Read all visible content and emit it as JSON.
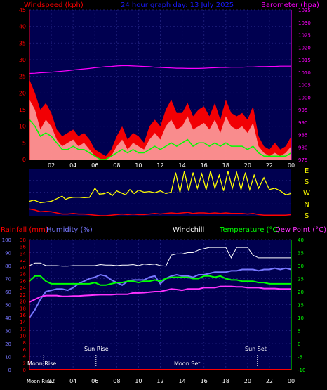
{
  "colors": {
    "background": "#000000",
    "plot_bg": "#000050",
    "wind_axis": "#ff0000",
    "baro_axis": "#ff00ff",
    "title": "#1a1aff",
    "windspeed_fill": "#ff0000",
    "gust": "#ff3030",
    "avg_wind": "#00ff00",
    "direction_line": "#ffff00",
    "rain": "#ff0000",
    "humidity": "#7777ff",
    "windchill": "#ffffff",
    "temperature": "#00ff00",
    "dewpoint": "#ff33ff",
    "temp_axis": "#00ff00"
  },
  "header": {
    "windspeed_label": "Windspeed (kph)",
    "title": "24 hour graph day: 13 July 2025",
    "barometer_label": "Barometer (hpa)"
  },
  "direction_labels": [
    "E",
    "S",
    "W",
    "N",
    "S"
  ],
  "lower_header": {
    "rain_label": "Rainfall (mm)",
    "humidity_label": "Humidity (%)",
    "windchill_label": "Windchill",
    "temperature_label": "Temperature (°C)",
    "dewpoint_label": "Dew Point (°C)"
  },
  "annotations": {
    "moon_rise": "Moon Rise",
    "sun_rise": "Sun Rise",
    "moon_set": "Moon Set",
    "sun_set": "Sun Set",
    "moon_rise_axis": "Moon Rise"
  },
  "chart_data": [
    {
      "type": "area",
      "title": "24 hour graph day: 13 July 2025",
      "xlabel": "",
      "ylabel": "Windspeed (kph)",
      "y2label": "Barometer (hpa)",
      "x_ticks": [
        "02",
        "04",
        "06",
        "08",
        "10",
        "12",
        "14",
        "16",
        "18",
        "20",
        "22",
        "00"
      ],
      "ylim": [
        0,
        45
      ],
      "yticks": [
        0,
        5,
        10,
        15,
        20,
        25,
        30,
        35,
        40,
        45
      ],
      "y2lim": [
        975,
        1035
      ],
      "y2ticks": [
        975,
        980,
        985,
        990,
        995,
        1000,
        1005,
        1010,
        1015,
        1020,
        1025,
        1030,
        1035
      ],
      "x_hours": [
        0,
        0.5,
        1,
        1.5,
        2,
        2.5,
        3,
        3.5,
        4,
        4.5,
        5,
        5.5,
        6,
        6.5,
        7,
        7.5,
        8,
        8.5,
        9,
        9.5,
        10,
        10.5,
        11,
        11.5,
        12,
        12.5,
        13,
        13.5,
        14,
        14.5,
        15,
        15.5,
        16,
        16.5,
        17,
        17.5,
        18,
        18.5,
        19,
        19.5,
        20,
        20.5,
        21,
        21.5,
        22,
        22.5,
        23,
        23.5,
        24
      ],
      "series": [
        {
          "values": [
            18,
            15,
            9,
            12,
            10,
            6,
            4,
            5,
            6,
            4,
            5,
            3,
            1,
            0,
            0,
            1,
            4,
            6,
            3,
            5,
            4,
            3,
            6,
            8,
            6,
            10,
            12,
            9,
            10,
            13,
            9,
            10,
            11,
            9,
            12,
            8,
            13,
            10,
            9,
            10,
            8,
            11,
            4,
            2,
            1,
            2,
            1,
            2,
            4
          ]
        },
        {
          "values": [
            24,
            20,
            15,
            17,
            14,
            9,
            7,
            8,
            9,
            7,
            8,
            6,
            3,
            2,
            1,
            3,
            7,
            10,
            6,
            8,
            7,
            5,
            10,
            12,
            10,
            15,
            18,
            14,
            14,
            17,
            13,
            15,
            16,
            13,
            17,
            12,
            18,
            14,
            13,
            14,
            12,
            16,
            7,
            4,
            3,
            5,
            3,
            4,
            7
          ]
        },
        {
          "values": [
            12,
            10,
            7,
            8,
            7,
            5,
            3,
            3,
            4,
            3,
            3,
            2,
            1,
            0,
            0,
            1,
            2,
            3,
            2,
            3,
            2,
            2,
            3,
            4,
            3,
            4,
            5,
            4,
            5,
            6,
            4,
            5,
            5,
            4,
            5,
            4,
            5,
            4,
            4,
            4,
            3,
            4,
            2,
            1,
            1,
            1,
            1,
            1,
            2
          ]
        },
        {
          "values": [
            1009.5,
            1009.6,
            1009.8,
            1009.9,
            1010.0,
            1010.2,
            1010.4,
            1010.6,
            1010.9,
            1011.1,
            1011.3,
            1011.5,
            1011.8,
            1012.0,
            1012.2,
            1012.3,
            1012.5,
            1012.6,
            1012.6,
            1012.5,
            1012.4,
            1012.3,
            1012.2,
            1012.0,
            1011.9,
            1011.8,
            1011.7,
            1011.6,
            1011.6,
            1011.5,
            1011.5,
            1011.5,
            1011.6,
            1011.7,
            1011.8,
            1011.9,
            1011.9,
            1012.0,
            1012.0,
            1012.0,
            1012.1,
            1012.1,
            1012.2,
            1012.2,
            1012.3,
            1012.3,
            1012.4,
            1012.4,
            1012.4
          ]
        }
      ]
    },
    {
      "type": "line",
      "ylabel": "",
      "direction_labels": [
        "E",
        "S",
        "W",
        "N",
        "S"
      ],
      "ylim": [
        90,
        450
      ],
      "x_hours": [
        0,
        0.4,
        1,
        1.5,
        2,
        2.5,
        3,
        3.3,
        3.6,
        4,
        4.5,
        5,
        5.5,
        6,
        6.4,
        6.8,
        7.2,
        7.6,
        8,
        8.4,
        8.8,
        9.2,
        9.6,
        10,
        10.5,
        11,
        11.5,
        12,
        12.5,
        13,
        13.4,
        13.8,
        14.2,
        14.6,
        15,
        15.4,
        15.8,
        16.2,
        16.6,
        17,
        17.4,
        17.8,
        18.2,
        18.6,
        19,
        19.4,
        19.8,
        20.2,
        20.6,
        21,
        21.5,
        22,
        22.5,
        23,
        23.5,
        24
      ],
      "series": [
        {
          "values": [
            200,
            210,
            190,
            195,
            200,
            220,
            240,
            215,
            225,
            230,
            232,
            228,
            230,
            300,
            255,
            258,
            270,
            245,
            280,
            265,
            250,
            290,
            260,
            285,
            270,
            275,
            265,
            280,
            260,
            270,
            420,
            270,
            430,
            280,
            420,
            300,
            410,
            290,
            430,
            300,
            400,
            280,
            430,
            300,
            420,
            290,
            420,
            290,
            400,
            300,
            380,
            290,
            300,
            280,
            250,
            260
          ]
        }
      ]
    },
    {
      "type": "line",
      "ylabel": "Humidity (%)",
      "y2label": "Temperature (°C)",
      "x_ticks": [
        "02",
        "04",
        "06",
        "08",
        "10",
        "12",
        "14",
        "16",
        "18",
        "20",
        "22",
        "00"
      ],
      "humidity_lim": [
        0,
        100
      ],
      "humidity_ticks": [
        0,
        10,
        20,
        30,
        40,
        50,
        60,
        70,
        80,
        90,
        100
      ],
      "rain_lim": [
        0,
        38
      ],
      "rain_ticks": [
        0,
        2,
        4,
        6,
        8,
        10,
        12,
        14,
        16,
        18,
        20,
        22,
        24,
        26,
        28,
        30,
        32,
        34,
        36,
        38
      ],
      "temp_lim": [
        -10,
        40
      ],
      "temp_ticks": [
        -10,
        -5,
        0,
        5,
        10,
        15,
        20,
        25,
        30,
        35,
        40
      ],
      "x_hours": [
        0,
        0.5,
        1,
        1.5,
        2,
        2.5,
        3,
        3.5,
        4,
        4.5,
        5,
        5.5,
        6,
        6.5,
        7,
        7.5,
        8,
        8.5,
        9,
        9.5,
        10,
        10.5,
        11,
        11.5,
        12,
        12.5,
        13,
        13.5,
        14,
        14.5,
        15,
        15.5,
        16,
        16.5,
        17,
        17.5,
        18,
        18.5,
        19,
        19.5,
        20,
        20.5,
        21,
        21.5,
        22,
        22.5,
        23,
        23.5,
        24
      ],
      "series": [
        {
          "values": [
            0,
            0,
            0,
            0,
            0,
            0,
            0,
            0,
            0,
            0,
            0,
            0,
            0,
            0,
            0,
            0,
            0,
            0,
            0,
            0,
            0,
            0,
            0,
            0,
            0,
            0,
            0,
            0,
            0,
            0,
            0,
            0,
            0,
            0,
            0,
            0,
            0,
            0,
            0,
            0,
            0,
            0,
            0,
            0,
            0,
            0,
            0,
            0,
            0
          ]
        },
        {
          "values": [
            40,
            46,
            54,
            60,
            61,
            62,
            62,
            61,
            63,
            66,
            68,
            70,
            71,
            73,
            72,
            69,
            67,
            65,
            68,
            69,
            69,
            69,
            71,
            72,
            66,
            70,
            72,
            73,
            72,
            72,
            71,
            73,
            73,
            74,
            75,
            75,
            75,
            76,
            76,
            77,
            77,
            77,
            76,
            77,
            77,
            78,
            77,
            78,
            77
          ]
        },
        {
          "values": [
            30,
            31,
            31,
            30,
            30,
            30,
            29.8,
            29.8,
            30,
            30,
            30,
            30,
            30,
            30.4,
            30.2,
            30.2,
            30,
            30.2,
            30.2,
            30.4,
            30,
            30.6,
            30.4,
            30.6,
            30,
            29.8,
            34,
            34.5,
            34.5,
            35,
            35,
            36,
            36.5,
            37,
            37,
            37,
            37,
            33,
            37,
            37,
            37,
            34,
            33,
            33,
            33,
            33,
            33,
            33,
            33
          ]
        },
        {
          "values": [
            24,
            26,
            26,
            24,
            23,
            23,
            23,
            23,
            23,
            23,
            23,
            23,
            23.5,
            22.5,
            22.5,
            23,
            23.5,
            23.5,
            24,
            24,
            23.5,
            24,
            24,
            24.5,
            24,
            25,
            25.5,
            25.5,
            25.5,
            25.5,
            25,
            25,
            26,
            26,
            25.5,
            26,
            25,
            24.5,
            24.5,
            24,
            24,
            24,
            23.5,
            23.5,
            23,
            23,
            23,
            23,
            23
          ]
        },
        {
          "values": [
            16,
            17,
            18,
            18.5,
            18.5,
            18.5,
            18.2,
            18.2,
            18.3,
            18.3,
            18.5,
            18.6,
            18.7,
            18.8,
            18.8,
            18.8,
            19,
            19,
            19,
            19.5,
            19.5,
            19.6,
            19.8,
            20,
            20,
            20.5,
            21,
            20.8,
            20.5,
            21,
            21,
            21,
            21.5,
            21.5,
            21.5,
            22,
            22,
            22,
            21.8,
            21.8,
            21.5,
            21.5,
            21.5,
            21.2,
            21.2,
            21.2,
            21,
            21,
            21
          ]
        }
      ]
    }
  ]
}
